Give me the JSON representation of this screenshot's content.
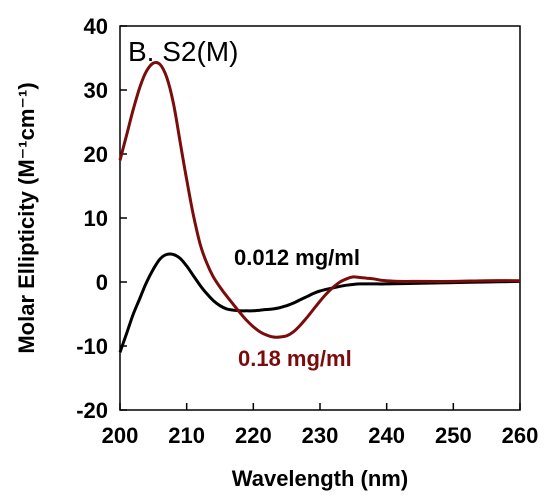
{
  "chart_data": {
    "type": "line",
    "title": "B. S2(M)",
    "xlabel": "Wavelength (nm)",
    "ylabel": "Molar Ellipticity (M⁻¹cm⁻¹)",
    "xlim": [
      200,
      260
    ],
    "ylim": [
      -20,
      40
    ],
    "xticks": [
      200,
      210,
      220,
      230,
      240,
      250,
      260
    ],
    "yticks": [
      -20,
      -10,
      0,
      10,
      20,
      30,
      40
    ],
    "grid": false,
    "series": [
      {
        "name": "0.012 mg/ml",
        "color": "#000000",
        "x": [
          200,
          201,
          202,
          203,
          204,
          205,
          206,
          207,
          208,
          209,
          210,
          211,
          212,
          213,
          214,
          215,
          216,
          217,
          218,
          219,
          220,
          221,
          222,
          223,
          224,
          225,
          226,
          227,
          228,
          229,
          230,
          232,
          234,
          236,
          238,
          240,
          245,
          250,
          255,
          260
        ],
        "y": [
          -11,
          -8,
          -5,
          -2.5,
          0,
          2,
          3.6,
          4.3,
          4.3,
          3.7,
          2.5,
          1,
          -0.5,
          -1.8,
          -2.9,
          -3.7,
          -4.2,
          -4.4,
          -4.5,
          -4.5,
          -4.5,
          -4.4,
          -4.3,
          -4.2,
          -4.0,
          -3.7,
          -3.3,
          -2.8,
          -2.3,
          -1.8,
          -1.4,
          -0.9,
          -0.5,
          -0.3,
          -0.3,
          -0.3,
          -0.2,
          -0.1,
          0,
          0.1
        ]
      },
      {
        "name": "0.18 mg/ml",
        "color": "#7a0c0c",
        "x": [
          200,
          201,
          202,
          203,
          204,
          205,
          206,
          207,
          208,
          209,
          210,
          211,
          212,
          213,
          214,
          215,
          216,
          217,
          218,
          219,
          220,
          221,
          222,
          223,
          224,
          225,
          226,
          227,
          228,
          229,
          230,
          231,
          232,
          233,
          234,
          235,
          236,
          237,
          238,
          239,
          240,
          242,
          245,
          250,
          255,
          260
        ],
        "y": [
          19,
          23,
          27,
          30.5,
          33,
          34.2,
          34,
          32,
          28,
          22,
          16,
          10.5,
          6,
          3,
          0.8,
          -0.8,
          -2.2,
          -3.5,
          -4.8,
          -6,
          -7,
          -7.8,
          -8.3,
          -8.6,
          -8.6,
          -8.4,
          -7.8,
          -6.8,
          -5.6,
          -4.3,
          -3.0,
          -1.8,
          -0.8,
          0.0,
          0.5,
          0.8,
          0.7,
          0.6,
          0.5,
          0.3,
          0.2,
          0.1,
          0.1,
          0.1,
          0.2,
          0.2
        ]
      }
    ],
    "annotations": [
      "0.012 mg/ml",
      "0.18 mg/ml"
    ]
  }
}
